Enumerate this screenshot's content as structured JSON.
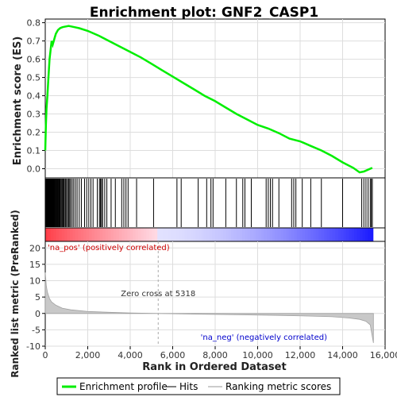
{
  "chart_data": {
    "type": "line",
    "title": "Enrichment plot: GNF2_CASP1",
    "top_panel": {
      "ylabel": "Enrichment score (ES)",
      "ylim": [
        -0.05,
        0.82
      ],
      "yticks": [
        "0.0",
        "0.1",
        "0.2",
        "0.3",
        "0.4",
        "0.5",
        "0.6",
        "0.7",
        "0.8"
      ],
      "ytick_values": [
        0.0,
        0.1,
        0.2,
        0.3,
        0.4,
        0.5,
        0.6,
        0.7,
        0.8
      ],
      "series": [
        {
          "name": "Enrichment profile",
          "color": "#00ee00",
          "x": [
            0,
            30,
            60,
            100,
            150,
            200,
            250,
            300,
            350,
            400,
            450,
            500,
            550,
            600,
            650,
            700,
            800,
            900,
            1000,
            1100,
            1200,
            1400,
            1600,
            2000,
            2500,
            3000,
            3500,
            4000,
            4500,
            5000,
            5500,
            6000,
            6500,
            7000,
            7500,
            8000,
            8500,
            9000,
            9500,
            10000,
            10500,
            11000,
            11500,
            12000,
            12500,
            13000,
            13500,
            14000,
            14500,
            14800,
            15000,
            15200,
            15400
          ],
          "y": [
            0.1,
            0.24,
            0.33,
            0.4,
            0.5,
            0.6,
            0.65,
            0.7,
            0.68,
            0.7,
            0.72,
            0.74,
            0.75,
            0.76,
            0.765,
            0.77,
            0.775,
            0.778,
            0.78,
            0.782,
            0.78,
            0.775,
            0.77,
            0.755,
            0.73,
            0.7,
            0.67,
            0.64,
            0.61,
            0.575,
            0.54,
            0.505,
            0.47,
            0.435,
            0.4,
            0.37,
            0.335,
            0.3,
            0.27,
            0.24,
            0.22,
            0.195,
            0.165,
            0.15,
            0.125,
            0.1,
            0.07,
            0.035,
            0.005,
            -0.02,
            -0.015,
            -0.005,
            0.005
          ]
        }
      ]
    },
    "hits_panel": {
      "legend_label": "Hits",
      "hit_positions": [
        20,
        40,
        60,
        80,
        100,
        120,
        140,
        160,
        180,
        200,
        220,
        240,
        260,
        280,
        300,
        320,
        340,
        360,
        380,
        400,
        430,
        460,
        490,
        520,
        550,
        580,
        610,
        640,
        670,
        700,
        740,
        780,
        820,
        860,
        900,
        950,
        1000,
        1050,
        1100,
        1150,
        1200,
        1270,
        1340,
        1420,
        1500,
        1600,
        1700,
        1850,
        1950,
        2050,
        2150,
        2250,
        2450,
        2550,
        2600,
        2650,
        2700,
        2800,
        2900,
        3100,
        3300,
        3600,
        3700,
        3800,
        3900,
        4300,
        5100,
        6200,
        6400,
        7200,
        7600,
        7800,
        7900,
        8500,
        9000,
        9300,
        9400,
        9700,
        10400,
        10500,
        10600,
        10700,
        11000,
        11600,
        11700,
        11800,
        12100,
        12500,
        13000,
        14000,
        14900,
        15000,
        15100,
        15200,
        15300,
        15350,
        15400
      ]
    },
    "ranked_panel": {
      "ylabel": "Ranked list metric (PreRanked)",
      "ylim": [
        -10,
        22
      ],
      "yticks": [
        "-10",
        "-5",
        "0",
        "5",
        "10",
        "15",
        "20"
      ],
      "ytick_values": [
        -10,
        -5,
        0,
        5,
        10,
        15,
        20
      ],
      "legend_label": "Ranking metric scores",
      "x": [
        0,
        50,
        100,
        200,
        300,
        500,
        800,
        1200,
        2000,
        3000,
        4000,
        5318,
        7000,
        9000,
        11000,
        12500,
        13500,
        14300,
        14800,
        15100,
        15300,
        15450
      ],
      "y": [
        12.5,
        8.5,
        6.5,
        4.5,
        3.5,
        2.5,
        1.6,
        1.1,
        0.6,
        0.35,
        0.15,
        0.0,
        -0.2,
        -0.4,
        -0.6,
        -0.8,
        -1.0,
        -1.4,
        -1.8,
        -2.4,
        -3.5,
        -9.0
      ],
      "zero_cross_label": "Zero cross at 5318",
      "zero_cross": 5318,
      "pos_label": "'na_pos' (positively correlated)",
      "neg_label": "'na_neg' (negatively correlated)"
    },
    "xlabel": "Rank in Ordered Dataset",
    "xlim": [
      0,
      16000
    ],
    "xticks": [
      "0",
      "2,000",
      "4,000",
      "6,000",
      "8,000",
      "10,000",
      "12,000",
      "14,000",
      "16,000"
    ],
    "xtick_values": [
      0,
      2000,
      4000,
      6000,
      8000,
      10000,
      12000,
      14000,
      16000
    ],
    "n_genes": 15450,
    "legend": [
      {
        "label": "Enrichment profile",
        "color": "#00ee00"
      },
      {
        "label": "Hits",
        "color": "#000000"
      },
      {
        "label": "Ranking metric scores",
        "color": "#bbbbbb"
      }
    ],
    "colors": {
      "pos": "#ff0000",
      "neg": "#0000ff",
      "pos_text": "#cc0000",
      "neg_text": "#0000cc"
    }
  }
}
